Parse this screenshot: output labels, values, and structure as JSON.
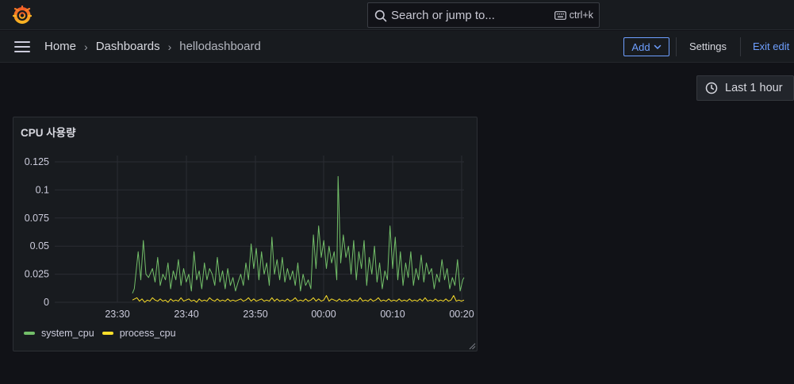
{
  "topbar": {
    "logo_icon": "grafana-logo-icon",
    "search_placeholder": "Search or jump to...",
    "shortcut": "ctrl+k"
  },
  "navbar": {
    "breadcrumbs": [
      "Home",
      "Dashboards",
      "hellodashboard"
    ],
    "add_label": "Add",
    "settings_label": "Settings",
    "exit_label": "Exit edit"
  },
  "time_picker": {
    "label": "Last 1 hour"
  },
  "panel": {
    "title": "CPU 사용량"
  },
  "chart_data": {
    "type": "line",
    "x_ticks": [
      "23:30",
      "23:40",
      "23:50",
      "00:00",
      "00:10",
      "00:20"
    ],
    "y_ticks": [
      "0.125",
      "0.1",
      "0.075",
      "0.05",
      "0.025",
      "0"
    ],
    "ylim": [
      0,
      0.13
    ],
    "grid": true,
    "legend_position": "bottom-left",
    "series": [
      {
        "name": "system_cpu",
        "color": "#73bf69",
        "points": [
          [
            23.33,
            0.008
          ],
          [
            23.4,
            0.012
          ],
          [
            23.55,
            0.045
          ],
          [
            23.65,
            0.02
          ],
          [
            23.75,
            0.055
          ],
          [
            23.85,
            0.025
          ],
          [
            23.95,
            0.022
          ],
          [
            24.1,
            0.03
          ],
          [
            24.2,
            0.018
          ],
          [
            24.3,
            0.04
          ],
          [
            24.4,
            0.015
          ],
          [
            24.5,
            0.025
          ],
          [
            24.6,
            0.02
          ],
          [
            24.7,
            0.035
          ],
          [
            24.8,
            0.012
          ],
          [
            24.9,
            0.028
          ],
          [
            25.0,
            0.02
          ],
          [
            25.1,
            0.038
          ],
          [
            25.2,
            0.015
          ],
          [
            25.3,
            0.03
          ],
          [
            25.4,
            0.018
          ],
          [
            25.5,
            0.025
          ],
          [
            25.6,
            0.01
          ],
          [
            25.7,
            0.045
          ],
          [
            25.8,
            0.02
          ],
          [
            25.9,
            0.028
          ],
          [
            26.0,
            0.012
          ],
          [
            26.1,
            0.035
          ],
          [
            26.2,
            0.02
          ],
          [
            26.3,
            0.03
          ],
          [
            26.4,
            0.025
          ],
          [
            26.5,
            0.015
          ],
          [
            26.6,
            0.04
          ],
          [
            26.7,
            0.018
          ],
          [
            26.8,
            0.028
          ],
          [
            26.9,
            0.012
          ],
          [
            27.0,
            0.03
          ],
          [
            27.1,
            0.015
          ],
          [
            27.2,
            0.022
          ],
          [
            27.3,
            0.01
          ],
          [
            27.4,
            0.018
          ],
          [
            27.5,
            0.025
          ],
          [
            27.6,
            0.015
          ],
          [
            27.7,
            0.035
          ],
          [
            27.8,
            0.02
          ],
          [
            27.9,
            0.052
          ],
          [
            28.0,
            0.03
          ],
          [
            28.1,
            0.048
          ],
          [
            28.2,
            0.02
          ],
          [
            28.3,
            0.045
          ],
          [
            28.4,
            0.025
          ],
          [
            28.5,
            0.035
          ],
          [
            28.6,
            0.015
          ],
          [
            28.7,
            0.058
          ],
          [
            28.8,
            0.025
          ],
          [
            28.9,
            0.038
          ],
          [
            29.0,
            0.02
          ],
          [
            29.1,
            0.04
          ],
          [
            29.2,
            0.018
          ],
          [
            29.3,
            0.03
          ],
          [
            29.4,
            0.02
          ],
          [
            29.5,
            0.028
          ],
          [
            29.6,
            0.015
          ],
          [
            29.7,
            0.035
          ],
          [
            29.8,
            0.01
          ],
          [
            29.9,
            0.025
          ],
          [
            30.0,
            0.015
          ],
          [
            30.1,
            0.02
          ],
          [
            30.2,
            0.012
          ],
          [
            30.3,
            0.06
          ],
          [
            30.4,
            0.03
          ],
          [
            30.5,
            0.068
          ],
          [
            30.6,
            0.04
          ],
          [
            30.7,
            0.055
          ],
          [
            30.8,
            0.03
          ],
          [
            30.9,
            0.05
          ],
          [
            31.0,
            0.035
          ],
          [
            31.1,
            0.045
          ],
          [
            31.2,
            0.02
          ],
          [
            31.25,
            0.112
          ],
          [
            31.35,
            0.035
          ],
          [
            31.45,
            0.06
          ],
          [
            31.55,
            0.04
          ],
          [
            31.65,
            0.05
          ],
          [
            31.75,
            0.025
          ],
          [
            31.85,
            0.055
          ],
          [
            31.95,
            0.02
          ],
          [
            32.05,
            0.045
          ],
          [
            32.15,
            0.03
          ],
          [
            32.25,
            0.055
          ],
          [
            32.35,
            0.015
          ],
          [
            32.45,
            0.04
          ],
          [
            32.55,
            0.025
          ],
          [
            32.65,
            0.05
          ],
          [
            32.75,
            0.018
          ],
          [
            32.85,
            0.035
          ],
          [
            32.95,
            0.012
          ],
          [
            33.05,
            0.028
          ],
          [
            33.15,
            0.02
          ],
          [
            33.25,
            0.068
          ],
          [
            33.35,
            0.03
          ],
          [
            33.45,
            0.058
          ],
          [
            33.55,
            0.02
          ],
          [
            33.65,
            0.045
          ],
          [
            33.75,
            0.015
          ],
          [
            33.85,
            0.035
          ],
          [
            33.95,
            0.022
          ],
          [
            34.05,
            0.045
          ],
          [
            34.15,
            0.015
          ],
          [
            34.25,
            0.03
          ],
          [
            34.35,
            0.02
          ],
          [
            34.45,
            0.042
          ],
          [
            34.55,
            0.018
          ],
          [
            34.65,
            0.035
          ],
          [
            34.75,
            0.025
          ],
          [
            34.85,
            0.03
          ],
          [
            34.95,
            0.012
          ],
          [
            35.05,
            0.025
          ],
          [
            35.15,
            0.018
          ],
          [
            35.25,
            0.038
          ],
          [
            35.35,
            0.02
          ],
          [
            35.45,
            0.03
          ],
          [
            35.55,
            0.012
          ],
          [
            35.65,
            0.022
          ],
          [
            35.75,
            0.015
          ],
          [
            35.85,
            0.038
          ],
          [
            35.95,
            0.01
          ],
          [
            36.05,
            0.02
          ],
          [
            36.1,
            0.022
          ]
        ]
      },
      {
        "name": "process_cpu",
        "color": "#fade2a",
        "points": [
          [
            23.33,
            0.002
          ],
          [
            23.5,
            0.004
          ],
          [
            23.6,
            0.001
          ],
          [
            23.7,
            0.003
          ],
          [
            23.8,
            0.0
          ],
          [
            23.9,
            0.002
          ],
          [
            24.0,
            0.001
          ],
          [
            24.1,
            0.004
          ],
          [
            24.2,
            0.002
          ],
          [
            24.3,
            0.001
          ],
          [
            24.4,
            0.003
          ],
          [
            24.5,
            0.001
          ],
          [
            24.6,
            0.002
          ],
          [
            24.7,
            0.0
          ],
          [
            24.8,
            0.003
          ],
          [
            24.9,
            0.001
          ],
          [
            25.0,
            0.002
          ],
          [
            25.1,
            0.001
          ],
          [
            25.2,
            0.004
          ],
          [
            25.3,
            0.001
          ],
          [
            25.4,
            0.002
          ],
          [
            25.5,
            0.003
          ],
          [
            25.6,
            0.001
          ],
          [
            25.7,
            0.002
          ],
          [
            25.8,
            0.0
          ],
          [
            25.9,
            0.003
          ],
          [
            26.0,
            0.001
          ],
          [
            26.1,
            0.002
          ],
          [
            26.2,
            0.001
          ],
          [
            26.3,
            0.004
          ],
          [
            26.4,
            0.002
          ],
          [
            26.5,
            0.001
          ],
          [
            26.6,
            0.003
          ],
          [
            26.7,
            0.001
          ],
          [
            26.8,
            0.002
          ],
          [
            26.9,
            0.001
          ],
          [
            27.0,
            0.003
          ],
          [
            27.1,
            0.001
          ],
          [
            27.2,
            0.002
          ],
          [
            27.3,
            0.001
          ],
          [
            27.4,
            0.002
          ],
          [
            27.5,
            0.003
          ],
          [
            27.6,
            0.001
          ],
          [
            27.7,
            0.002
          ],
          [
            27.8,
            0.004
          ],
          [
            27.9,
            0.001
          ],
          [
            28.0,
            0.003
          ],
          [
            28.1,
            0.001
          ],
          [
            28.2,
            0.002
          ],
          [
            28.3,
            0.003
          ],
          [
            28.4,
            0.001
          ],
          [
            28.5,
            0.002
          ],
          [
            28.6,
            0.001
          ],
          [
            28.7,
            0.004
          ],
          [
            28.8,
            0.001
          ],
          [
            28.9,
            0.003
          ],
          [
            29.0,
            0.001
          ],
          [
            29.1,
            0.002
          ],
          [
            29.2,
            0.001
          ],
          [
            29.3,
            0.003
          ],
          [
            29.4,
            0.001
          ],
          [
            29.5,
            0.002
          ],
          [
            29.6,
            0.004
          ],
          [
            29.7,
            0.001
          ],
          [
            29.8,
            0.002
          ],
          [
            29.9,
            0.001
          ],
          [
            30.0,
            0.003
          ],
          [
            30.1,
            0.001
          ],
          [
            30.2,
            0.002
          ],
          [
            30.3,
            0.004
          ],
          [
            30.4,
            0.001
          ],
          [
            30.5,
            0.003
          ],
          [
            30.6,
            0.001
          ],
          [
            30.7,
            0.002
          ],
          [
            30.8,
            0.006
          ],
          [
            30.9,
            0.001
          ],
          [
            31.0,
            0.003
          ],
          [
            31.1,
            0.002
          ],
          [
            31.2,
            0.001
          ],
          [
            31.3,
            0.003
          ],
          [
            31.4,
            0.001
          ],
          [
            31.5,
            0.002
          ],
          [
            31.6,
            0.001
          ],
          [
            31.7,
            0.003
          ],
          [
            31.8,
            0.001
          ],
          [
            31.9,
            0.002
          ],
          [
            32.0,
            0.001
          ],
          [
            32.1,
            0.004
          ],
          [
            32.2,
            0.001
          ],
          [
            32.3,
            0.002
          ],
          [
            32.4,
            0.001
          ],
          [
            32.5,
            0.003
          ],
          [
            32.6,
            0.001
          ],
          [
            32.7,
            0.002
          ],
          [
            32.8,
            0.004
          ],
          [
            32.9,
            0.001
          ],
          [
            33.0,
            0.002
          ],
          [
            33.1,
            0.001
          ],
          [
            33.2,
            0.003
          ],
          [
            33.3,
            0.001
          ],
          [
            33.4,
            0.002
          ],
          [
            33.5,
            0.001
          ],
          [
            33.6,
            0.003
          ],
          [
            33.7,
            0.001
          ],
          [
            33.8,
            0.002
          ],
          [
            33.9,
            0.001
          ],
          [
            34.0,
            0.003
          ],
          [
            34.1,
            0.001
          ],
          [
            34.2,
            0.002
          ],
          [
            34.3,
            0.001
          ],
          [
            34.4,
            0.003
          ],
          [
            34.5,
            0.001
          ],
          [
            34.6,
            0.004
          ],
          [
            34.7,
            0.001
          ],
          [
            34.8,
            0.002
          ],
          [
            34.9,
            0.001
          ],
          [
            35.0,
            0.003
          ],
          [
            35.1,
            0.001
          ],
          [
            35.2,
            0.002
          ],
          [
            35.3,
            0.001
          ],
          [
            35.4,
            0.003
          ],
          [
            35.5,
            0.001
          ],
          [
            35.6,
            0.002
          ],
          [
            35.7,
            0.006
          ],
          [
            35.8,
            0.001
          ],
          [
            35.9,
            0.002
          ],
          [
            36.0,
            0.001
          ],
          [
            36.1,
            0.002
          ]
        ]
      }
    ]
  }
}
